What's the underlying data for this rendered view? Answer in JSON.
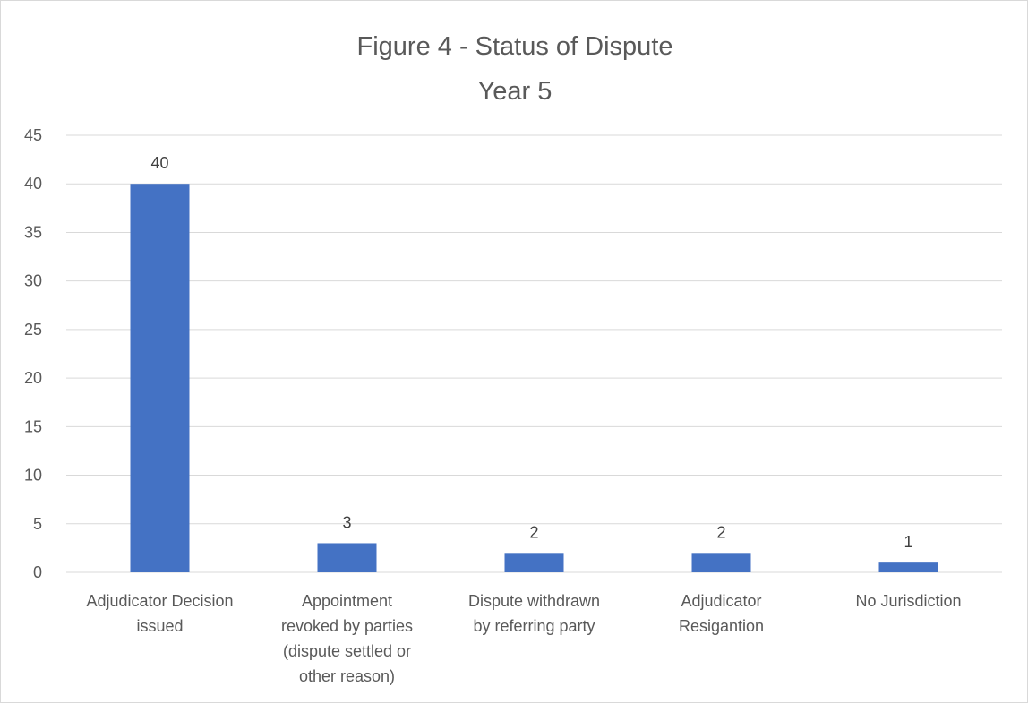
{
  "chart_data": {
    "type": "bar",
    "title": "Figure 4 - Status of Dispute",
    "subtitle": "Year 5",
    "categories": [
      [
        "Adjudicator Decision",
        "issued"
      ],
      [
        "Appointment",
        "revoked by parties",
        "(dispute settled or",
        "other reason)"
      ],
      [
        "Dispute withdrawn",
        "by referring party"
      ],
      [
        "Adjudicator",
        "Resigantion"
      ],
      [
        "No Jurisdiction"
      ]
    ],
    "values": [
      40,
      3,
      2,
      2,
      1
    ],
    "ylim": [
      0,
      45
    ],
    "yticks": [
      0,
      5,
      10,
      15,
      20,
      25,
      30,
      35,
      40,
      45
    ],
    "grid": true,
    "legend": "none",
    "bar_color": "#4472C4"
  }
}
